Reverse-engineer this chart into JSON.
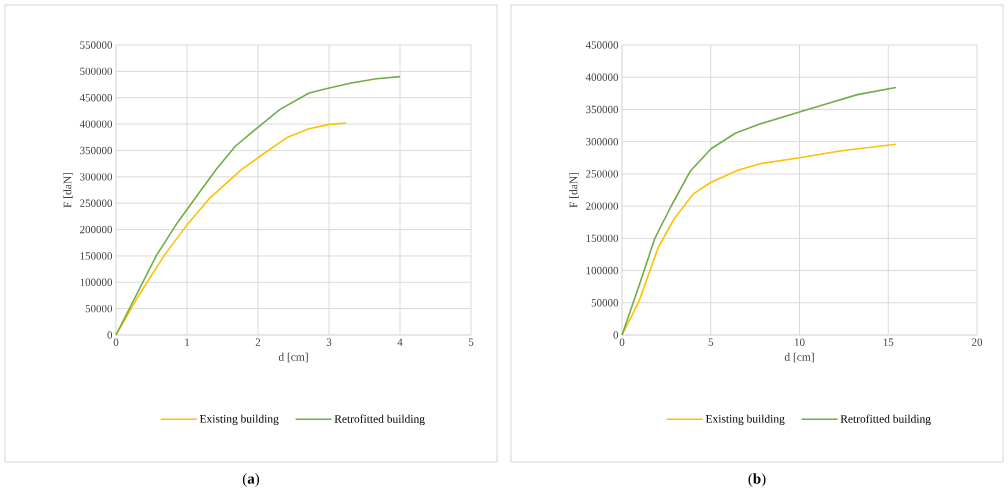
{
  "chart_data": [
    {
      "type": "line",
      "xlabel": "d [cm]",
      "ylabel": "F [daN]",
      "xlim": [
        0,
        5
      ],
      "xticks": [
        0,
        1,
        2,
        3,
        4,
        5
      ],
      "ylim": [
        0,
        550000
      ],
      "yticks": [
        0,
        50000,
        100000,
        150000,
        200000,
        250000,
        300000,
        350000,
        400000,
        450000,
        500000,
        550000
      ],
      "grid": true,
      "legend": "bottom",
      "annotations": [
        "(**a**)"
      ],
      "series": [
        {
          "name": "Existing building",
          "color": "#ffc000",
          "x": [
            0,
            0.32,
            0.68,
            0.99,
            1.31,
            1.77,
            2.04,
            2.4,
            2.72,
            2.99,
            3.24
          ],
          "values": [
            0,
            75000,
            151000,
            207000,
            258000,
            314000,
            340000,
            374000,
            391000,
            399000,
            402000
          ]
        },
        {
          "name": "Retrofitted building",
          "color": "#70ad47",
          "x": [
            0,
            0.57,
            0.87,
            1.14,
            1.41,
            1.68,
            1.99,
            2.31,
            2.72,
            2.99,
            3.31,
            3.67,
            4.0
          ],
          "values": [
            0,
            151000,
            214000,
            264000,
            314000,
            358000,
            393000,
            428000,
            459000,
            468000,
            478000,
            486000,
            490000
          ]
        }
      ]
    },
    {
      "type": "line",
      "xlabel": "d [cm]",
      "ylabel": "F [daN]",
      "xlim": [
        0,
        20
      ],
      "xticks": [
        0,
        5,
        10,
        15,
        20
      ],
      "ylim": [
        0,
        450000
      ],
      "yticks": [
        0,
        50000,
        100000,
        150000,
        200000,
        250000,
        300000,
        350000,
        400000,
        450000
      ],
      "grid": true,
      "legend": "bottom",
      "annotations": [
        "(**b**)"
      ],
      "series": [
        {
          "name": "Existing building",
          "color": "#ffc000",
          "x": [
            0,
            0.94,
            2.03,
            2.93,
            4.02,
            5.02,
            6.56,
            7.83,
            10,
            12.36,
            15.43
          ],
          "values": [
            0,
            51000,
            135000,
            180000,
            219000,
            237000,
            256000,
            266000,
            275000,
            286000,
            296000
          ]
        },
        {
          "name": "Retrofitted building",
          "color": "#70ad47",
          "x": [
            0,
            0.94,
            1.85,
            2.75,
            3.84,
            5.02,
            6.38,
            7.83,
            10,
            11.45,
            13.26,
            15.43
          ],
          "values": [
            0,
            75000,
            150000,
            199000,
            254000,
            289000,
            313000,
            328000,
            346000,
            358000,
            373000,
            384000
          ]
        }
      ]
    }
  ]
}
